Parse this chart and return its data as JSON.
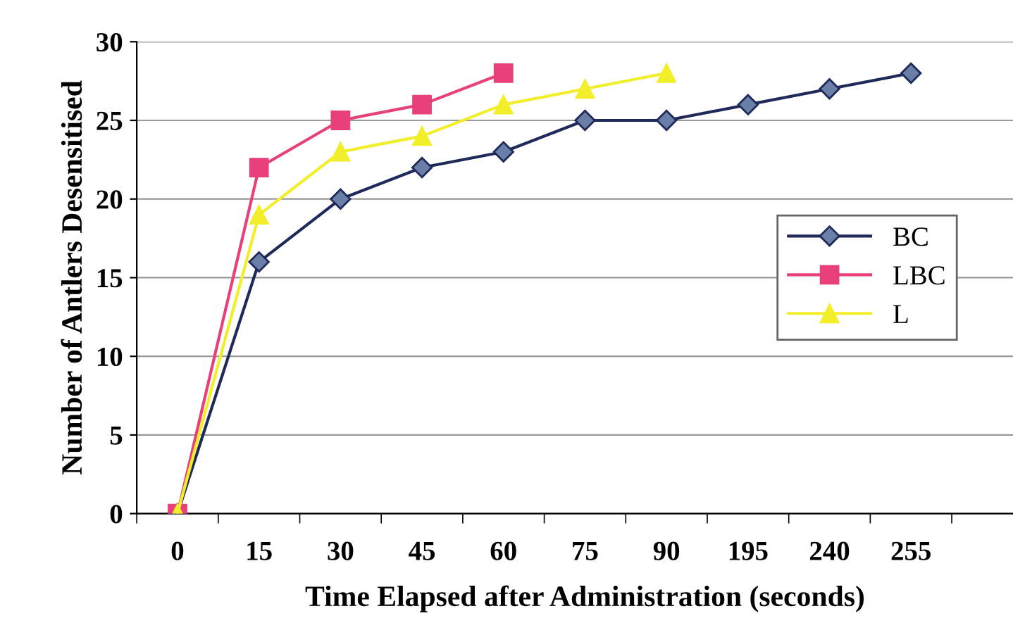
{
  "chart_data": {
    "type": "line",
    "xlabel": "Time Elapsed after Administration (seconds)",
    "ylabel": "Number of Antlers Desensitised",
    "categories": [
      "0",
      "15",
      "30",
      "45",
      "60",
      "75",
      "90",
      "195",
      "240",
      "255",
      null
    ],
    "ylim": [
      0,
      30
    ],
    "yticks": [
      0,
      5,
      10,
      15,
      20,
      25,
      30
    ],
    "grid": "y",
    "legend": "center right",
    "series": [
      {
        "name": "BC",
        "color": "#1f2a5a",
        "marker": "diamond",
        "values": [
          0,
          16,
          20,
          22,
          23,
          25,
          25,
          26,
          27,
          28,
          null
        ]
      },
      {
        "name": "LBC",
        "color": "#e8407a",
        "marker": "square",
        "values": [
          0,
          22,
          25,
          26,
          28,
          null,
          null,
          null,
          null,
          null,
          null
        ]
      },
      {
        "name": "L",
        "color": "#f2ee2a",
        "marker": "triangle",
        "values": [
          0,
          19,
          23,
          24,
          26,
          27,
          28,
          null,
          null,
          null,
          null
        ]
      }
    ]
  }
}
